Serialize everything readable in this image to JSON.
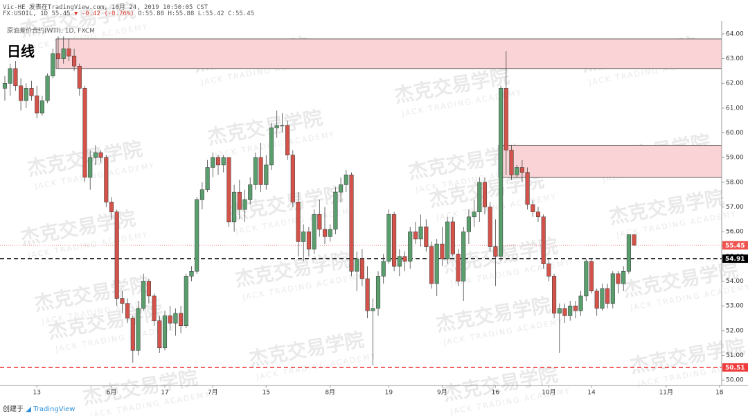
{
  "header": {
    "author": "Vic-HE 发表在TradingView.com, 10月 24, 2019 10:50:05 CST",
    "symbol": "FX:USOIL, 1D 55.45",
    "change": "▼ -0.42 (-0.76%)",
    "ohlc": "O:55.88 H:55.88 L:55.42 C:55.45",
    "instrument": "原油差价合约(WTI), 1D, FXCM",
    "timeframe": "日线"
  },
  "watermark": {
    "cn": "杰克交易学院",
    "en": "JACK TRADING ACADEMY"
  },
  "footer": {
    "created": "创建于",
    "brand": "TradingView"
  },
  "chart_data": {
    "type": "candlestick",
    "up_color": "#5a9e6e",
    "down_color": "#d3534a",
    "grid": false,
    "categories": [
      null,
      null,
      null,
      null,
      null,
      null,
      "13",
      null,
      null,
      null,
      null,
      null,
      null,
      null,
      null,
      null,
      null,
      null,
      null,
      null,
      "6月",
      null,
      null,
      null,
      null,
      null,
      null,
      null,
      null,
      null,
      "17",
      null,
      null,
      null,
      null,
      null,
      null,
      null,
      null,
      "7月",
      null,
      null,
      null,
      null,
      null,
      null,
      null,
      null,
      null,
      "15",
      null,
      null,
      null,
      null,
      null,
      null,
      null,
      null,
      null,
      null,
      null,
      "8月",
      null,
      null,
      null,
      null,
      null,
      null,
      null,
      null,
      null,
      null,
      "19",
      null,
      null,
      null,
      null,
      null,
      null,
      null,
      null,
      null,
      "9月",
      null,
      null,
      null,
      null,
      null,
      null,
      null,
      null,
      null,
      "16",
      null,
      null,
      null,
      null,
      null,
      null,
      null,
      null,
      null,
      "10月",
      null,
      null,
      null,
      null,
      null,
      null,
      null,
      "14",
      null,
      null,
      null,
      null,
      null,
      null,
      null,
      null,
      null,
      null,
      null,
      null,
      null,
      "11月",
      null,
      null,
      null,
      null,
      null,
      null,
      null,
      null,
      null,
      "18"
    ],
    "open": [
      61.8,
      62.0,
      62.6,
      61.9,
      61.3,
      61.8,
      61.5,
      60.8,
      61.3,
      62.3,
      63.2,
      63.0,
      63.4,
      63.1,
      62.7,
      61.8,
      58.2,
      59.0,
      59.2,
      59.0,
      57.2,
      56.8,
      53.3,
      53.1,
      52.5,
      51.2,
      52.9,
      54.0,
      53.4,
      52.4,
      51.3,
      52.6,
      52.3,
      52.7,
      52.2,
      54.2,
      54.4,
      57.3,
      57.7,
      58.6,
      59.0,
      58.7,
      59.0,
      56.4,
      57.6,
      56.9,
      57.3,
      57.9,
      59.0,
      57.9,
      58.7,
      60.2,
      60.3,
      60.3,
      59.1,
      57.2,
      55.6,
      56.0,
      55.3,
      56.7,
      56.1,
      55.8,
      56.1,
      57.6,
      57.9,
      58.3,
      54.4,
      54.9,
      54.1,
      52.8,
      52.9,
      54.2,
      54.8,
      56.7,
      54.6,
      55.0,
      54.8,
      56.0,
      55.7,
      56.2,
      55.4,
      53.9,
      55.5,
      54.9,
      56.4,
      55.1,
      54.0,
      56.0,
      56.6,
      56.8,
      58.0,
      57.0,
      55.4,
      55.0,
      61.8,
      59.3,
      58.3,
      58.6,
      58.4,
      57.1,
      56.8,
      56.6,
      54.7,
      54.2,
      52.7,
      52.9,
      52.6,
      53.0,
      52.8,
      53.4,
      54.8,
      53.6,
      52.9,
      53.7,
      53.1,
      54.3,
      53.9,
      54.4,
      55.88,
      null,
      null,
      null,
      null,
      null,
      null,
      null,
      null,
      null,
      null,
      null,
      null,
      null,
      null,
      null,
      null
    ],
    "high": [
      62.3,
      62.8,
      62.9,
      62.2,
      62.0,
      62.1,
      61.9,
      61.5,
      62.4,
      63.4,
      63.9,
      63.9,
      63.8,
      63.4,
      62.8,
      61.9,
      59.3,
      59.5,
      59.3,
      59.1,
      57.4,
      56.9,
      53.6,
      53.3,
      52.6,
      53.2,
      54.3,
      54.1,
      53.5,
      52.6,
      52.8,
      53.0,
      52.9,
      53.0,
      54.3,
      54.6,
      57.4,
      58.0,
      58.9,
      59.2,
      59.1,
      59.1,
      59.0,
      57.9,
      58.1,
      57.7,
      58.2,
      59.2,
      59.6,
      59.1,
      60.4,
      60.9,
      60.8,
      60.5,
      59.3,
      57.6,
      56.3,
      56.2,
      56.9,
      57.3,
      57.0,
      56.3,
      57.8,
      58.2,
      58.5,
      58.4,
      55.2,
      55.3,
      54.6,
      53.3,
      54.4,
      55.1,
      56.9,
      56.8,
      55.3,
      55.2,
      56.2,
      56.4,
      56.7,
      56.5,
      55.6,
      55.7,
      56.2,
      56.6,
      56.6,
      55.3,
      56.2,
      56.9,
      57.3,
      58.2,
      58.2,
      57.2,
      56.5,
      61.9,
      63.3,
      59.5,
      58.7,
      58.9,
      58.6,
      57.3,
      57.0,
      56.7,
      54.9,
      54.3,
      53.1,
      53.1,
      53.2,
      53.2,
      53.6,
      54.9,
      54.9,
      53.7,
      53.9,
      53.9,
      54.4,
      54.4,
      54.6,
      55.9,
      55.88,
      null,
      null,
      null,
      null,
      null,
      null,
      null,
      null,
      null,
      null,
      null,
      null,
      null,
      null,
      null,
      null
    ],
    "low": [
      61.3,
      61.5,
      61.7,
      60.9,
      61.0,
      61.3,
      60.6,
      60.7,
      61.2,
      62.2,
      62.6,
      62.8,
      62.9,
      62.5,
      61.5,
      58.0,
      57.7,
      58.7,
      58.8,
      57.0,
      56.5,
      53.0,
      52.7,
      52.3,
      50.7,
      51.0,
      52.8,
      53.1,
      52.2,
      51.1,
      51.2,
      52.0,
      51.8,
      51.9,
      52.1,
      54.0,
      54.3,
      56.9,
      57.6,
      58.2,
      58.3,
      58.4,
      56.2,
      56.0,
      56.5,
      56.4,
      57.1,
      57.7,
      57.6,
      57.7,
      58.5,
      59.8,
      60.0,
      58.9,
      57.0,
      55.0,
      54.8,
      55.0,
      55.1,
      55.8,
      55.5,
      55.6,
      55.9,
      57.2,
      57.6,
      54.2,
      53.6,
      53.8,
      52.5,
      50.6,
      52.6,
      53.9,
      54.7,
      54.4,
      54.2,
      54.4,
      54.5,
      55.5,
      55.4,
      55.2,
      53.7,
      53.4,
      54.6,
      54.7,
      55.0,
      53.8,
      53.2,
      55.5,
      56.2,
      56.4,
      56.7,
      55.2,
      53.8,
      54.8,
      58.3,
      58.1,
      58.2,
      58.0,
      56.9,
      56.6,
      56.4,
      54.5,
      54.0,
      52.5,
      51.1,
      52.3,
      52.4,
      52.5,
      52.6,
      53.2,
      53.5,
      52.6,
      52.8,
      52.9,
      52.9,
      53.5,
      53.6,
      54.3,
      55.42,
      null,
      null,
      null,
      null,
      null,
      null,
      null,
      null,
      null,
      null,
      null,
      null,
      null,
      null,
      null,
      null
    ],
    "close": [
      62.0,
      62.6,
      61.9,
      61.3,
      61.8,
      61.5,
      60.8,
      61.3,
      62.3,
      63.2,
      63.0,
      63.4,
      63.1,
      62.7,
      61.8,
      58.2,
      59.0,
      59.2,
      59.0,
      57.2,
      56.8,
      53.3,
      53.1,
      52.5,
      51.2,
      52.9,
      54.0,
      53.4,
      52.4,
      51.3,
      52.6,
      52.3,
      52.7,
      52.2,
      54.2,
      54.4,
      57.3,
      57.7,
      58.6,
      59.0,
      58.7,
      59.0,
      56.4,
      57.6,
      56.9,
      57.3,
      57.9,
      59.0,
      57.9,
      58.7,
      60.2,
      60.3,
      60.3,
      59.1,
      57.2,
      55.6,
      56.0,
      55.3,
      56.7,
      56.1,
      55.8,
      56.1,
      57.6,
      57.9,
      58.3,
      54.4,
      54.9,
      54.1,
      52.8,
      52.9,
      54.2,
      54.8,
      56.7,
      54.6,
      55.0,
      54.8,
      56.0,
      55.7,
      56.2,
      55.4,
      53.9,
      55.5,
      54.9,
      56.4,
      55.1,
      54.0,
      56.0,
      56.6,
      56.8,
      58.0,
      57.0,
      55.4,
      55.0,
      61.8,
      59.3,
      58.3,
      58.6,
      58.4,
      57.1,
      56.8,
      56.6,
      54.7,
      54.2,
      52.7,
      52.9,
      52.6,
      53.0,
      52.8,
      53.4,
      54.8,
      53.6,
      52.9,
      53.7,
      53.1,
      54.3,
      53.9,
      54.4,
      55.88,
      55.45,
      null,
      null,
      null,
      null,
      null,
      null,
      null,
      null,
      null,
      null,
      null,
      null,
      null,
      null,
      null,
      null
    ],
    "ylim": [
      49.78,
      64.25
    ],
    "yticks": [
      {
        "value": 50,
        "label": "50.00"
      },
      {
        "value": 51,
        "label": "51.00"
      },
      {
        "value": 52,
        "label": "52.00"
      },
      {
        "value": 53,
        "label": "53.00"
      },
      {
        "value": 54,
        "label": "54.00"
      },
      {
        "value": 55,
        "label": "55.00"
      },
      {
        "value": 56,
        "label": "56.00"
      },
      {
        "value": 57,
        "label": "57.00"
      },
      {
        "value": 58,
        "label": "58.00"
      },
      {
        "value": 59,
        "label": "59.00"
      },
      {
        "value": 60,
        "label": "60.00"
      },
      {
        "value": 61,
        "label": "61.00"
      },
      {
        "value": 62,
        "label": "62.00"
      },
      {
        "value": 63,
        "label": "63.00"
      },
      {
        "value": 64,
        "label": "64.00"
      }
    ],
    "zones": [
      {
        "low": 62.6,
        "high": 63.8,
        "start": 10
      },
      {
        "low": 58.2,
        "high": 59.5,
        "start": 93
      }
    ],
    "zone_color": "#f9d3d6",
    "levels": [
      {
        "value": 55.45,
        "label": "55.45",
        "color": "#ef5350",
        "style": "dotted"
      },
      {
        "value": 54.91,
        "label": "54.91",
        "color": "#000000",
        "style": "dashed"
      },
      {
        "value": 50.51,
        "label": "50.51",
        "color": "#ef3b3b",
        "style": "dashed"
      }
    ]
  }
}
